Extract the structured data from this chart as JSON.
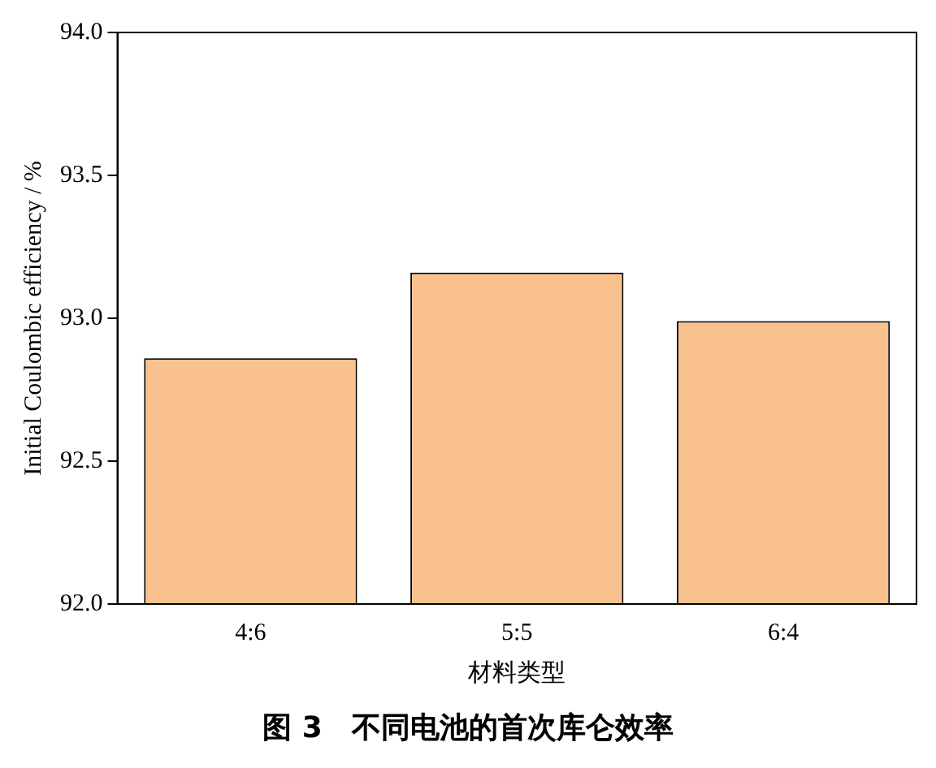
{
  "chart_data": {
    "type": "bar",
    "title": "图 3　不同电池的首次库仑效率",
    "xlabel": "材料类型",
    "ylabel": "Initial Coulombic efficiency / %",
    "categories": [
      "4:6",
      "5:5",
      "6:4"
    ],
    "values": [
      92.86,
      93.16,
      92.99
    ],
    "color": "#f9c18e",
    "ylim": [
      92.0,
      94.0
    ],
    "yticks": [
      {
        "value": 92.0,
        "label": "92.0"
      },
      {
        "value": 92.5,
        "label": "92.5"
      },
      {
        "value": 93.0,
        "label": "93.0"
      },
      {
        "value": 93.5,
        "label": "93.5"
      },
      {
        "value": 94.0,
        "label": "94.0"
      }
    ],
    "grid": false,
    "legend": false
  }
}
